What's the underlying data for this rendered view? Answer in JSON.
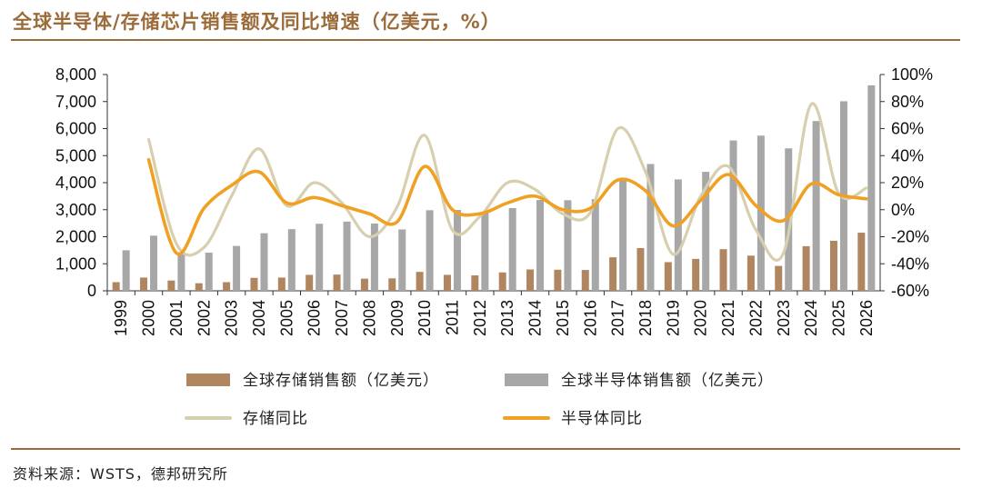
{
  "header": {
    "title": "全球半导体/存储芯片销售额及同比增速（亿美元，%）"
  },
  "footer": {
    "source": "资料来源：WSTS，德邦研究所"
  },
  "colors": {
    "memory_bar": "#b08660",
    "semi_bar": "#a7a7a7",
    "memory_line": "#d8cfae",
    "semi_line": "#f0a023",
    "brand": "#9c6b3a"
  },
  "chart_data": {
    "type": "bar+line",
    "title": "全球半导体/存储芯片销售额及同比增速（亿美元，%）",
    "categories": [
      "1999",
      "2000",
      "2001",
      "2002",
      "2003",
      "2004",
      "2005",
      "2006",
      "2007",
      "2008",
      "2009",
      "2010",
      "2011",
      "2012",
      "2013",
      "2014",
      "2015",
      "2016",
      "2017",
      "2018",
      "2019",
      "2020",
      "2021",
      "2022",
      "2023",
      "2024",
      "2025",
      "2026"
    ],
    "left_axis": {
      "min": 0,
      "max": 8000,
      "ticks": [
        0,
        1000,
        2000,
        3000,
        4000,
        5000,
        6000,
        7000,
        8000
      ],
      "tick_labels": [
        "0",
        "1,000",
        "2,000",
        "3,000",
        "4,000",
        "5,000",
        "6,000",
        "7,000",
        "8,000"
      ]
    },
    "right_axis": {
      "min": -60,
      "max": 100,
      "ticks": [
        -60,
        -40,
        -20,
        0,
        20,
        40,
        60,
        80,
        100
      ],
      "tick_labels": [
        "-60%",
        "-40%",
        "-20%",
        "0%",
        "20%",
        "40%",
        "60%",
        "80%",
        "100%"
      ]
    },
    "series": [
      {
        "name": "全球存储销售额（亿美元）",
        "type": "bar",
        "axis": "left",
        "values": [
          320,
          490,
          380,
          280,
          320,
          480,
          490,
          590,
          600,
          450,
          460,
          700,
          590,
          570,
          680,
          790,
          780,
          770,
          1240,
          1580,
          1060,
          1180,
          1540,
          1300,
          920,
          1650,
          1850,
          2150
        ]
      },
      {
        "name": "全球半导体销售额（亿美元）",
        "type": "bar",
        "axis": "left",
        "values": [
          1500,
          2040,
          1390,
          1410,
          1660,
          2130,
          2280,
          2480,
          2560,
          2490,
          2270,
          2980,
          2990,
          2920,
          3060,
          3360,
          3350,
          3390,
          4120,
          4690,
          4120,
          4400,
          5560,
          5740,
          5270,
          6280,
          7010,
          7600
        ]
      },
      {
        "name": "存储同比",
        "type": "line",
        "axis": "right",
        "values": [
          null,
          52,
          -25,
          -28,
          10,
          45,
          3,
          20,
          5,
          -20,
          2,
          55,
          -15,
          -5,
          20,
          15,
          -3,
          -2,
          60,
          28,
          -33,
          10,
          32,
          -15,
          -32,
          78,
          12,
          16
        ]
      },
      {
        "name": "半导体同比",
        "type": "line",
        "axis": "right",
        "values": [
          null,
          37,
          -32,
          1,
          18,
          28,
          5,
          9,
          3,
          -3,
          -9,
          32,
          0,
          -3,
          5,
          10,
          0,
          1,
          22,
          14,
          -12,
          7,
          26,
          3,
          -8,
          19,
          11,
          8
        ]
      }
    ],
    "legend": [
      {
        "label": "全球存储销售额（亿美元）",
        "kind": "bar",
        "color_key": "memory_bar"
      },
      {
        "label": "全球半导体销售额（亿美元）",
        "kind": "bar",
        "color_key": "semi_bar"
      },
      {
        "label": "存储同比",
        "kind": "line",
        "color_key": "memory_line"
      },
      {
        "label": "半导体同比",
        "kind": "line",
        "color_key": "semi_line"
      }
    ],
    "legend_placement": "bottom",
    "grid": false
  }
}
